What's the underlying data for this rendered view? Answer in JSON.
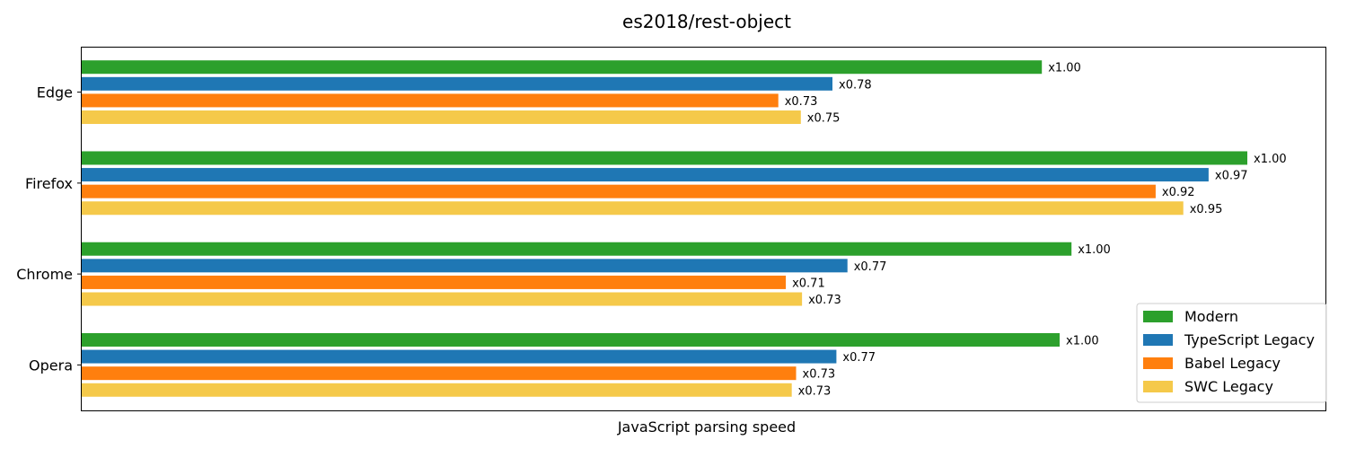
{
  "chart_data": {
    "type": "bar",
    "orientation": "horizontal",
    "title": "es2018/rest-object",
    "xlabel": "JavaScript parsing speed",
    "ylabel": "",
    "categories": [
      "Edge",
      "Firefox",
      "Chrome",
      "Opera"
    ],
    "series": [
      {
        "name": "Modern",
        "color": "#2ca02c",
        "values": [
          24.3,
          29.5,
          25.05,
          24.75
        ],
        "labels": [
          "x1.00",
          "x1.00",
          "x1.00",
          "x1.00"
        ]
      },
      {
        "name": "TypeScript Legacy",
        "color": "#1f77b4",
        "values": [
          19.0,
          28.52,
          19.38,
          19.1
        ],
        "labels": [
          "x0.78",
          "x0.97",
          "x0.77",
          "x0.77"
        ]
      },
      {
        "name": "Babel Legacy",
        "color": "#ff7f0e",
        "values": [
          17.63,
          27.18,
          17.82,
          18.08
        ],
        "labels": [
          "x0.73",
          "x0.92",
          "x0.71",
          "x0.73"
        ]
      },
      {
        "name": "SWC Legacy",
        "color": "#f5c94a",
        "values": [
          18.2,
          27.88,
          18.23,
          17.97
        ],
        "labels": [
          "x0.75",
          "x0.95",
          "x0.73",
          "x0.73"
        ]
      }
    ],
    "xlim": [
      0,
      31.5
    ],
    "x_ticks_visible": false,
    "grid": false,
    "legend_position": "lower-right"
  }
}
